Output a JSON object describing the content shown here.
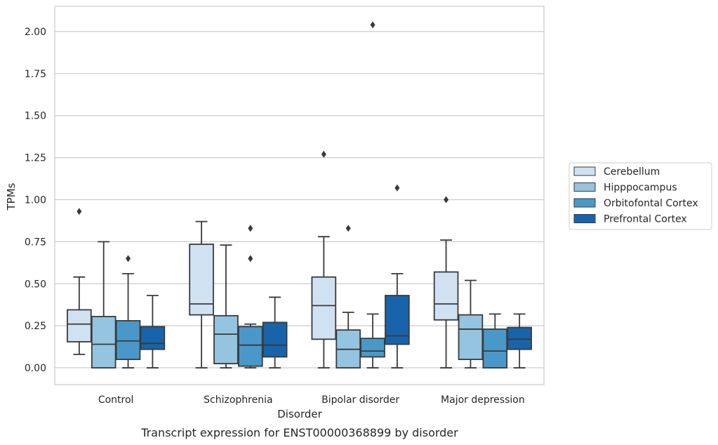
{
  "chart_data": {
    "type": "box",
    "title": "",
    "xlabel": "Disorder",
    "ylabel": "TPMs",
    "caption": "Transcript expression for ENST00000368899 by disorder",
    "ylim": [
      -0.1,
      2.15
    ],
    "yticks": [
      "0.00",
      "0.25",
      "0.50",
      "0.75",
      "1.00",
      "1.25",
      "1.50",
      "1.75",
      "2.00"
    ],
    "grid": "horizontal",
    "legend_position": "right",
    "categories": [
      "Control",
      "Schizophrenia",
      "Bipolar disorder",
      "Major depression"
    ],
    "series": [
      {
        "name": "Cerebellum",
        "color": "#d0e1f2",
        "boxes": [
          {
            "whislo": 0.08,
            "q1": 0.155,
            "med": 0.26,
            "q3": 0.345,
            "whishi": 0.54,
            "fliers": [
              0.93
            ]
          },
          {
            "whislo": 0.0,
            "q1": 0.315,
            "med": 0.38,
            "q3": 0.735,
            "whishi": 0.87,
            "fliers": []
          },
          {
            "whislo": 0.0,
            "q1": 0.17,
            "med": 0.37,
            "q3": 0.54,
            "whishi": 0.78,
            "fliers": [
              1.27
            ]
          },
          {
            "whislo": 0.0,
            "q1": 0.285,
            "med": 0.38,
            "q3": 0.57,
            "whishi": 0.76,
            "fliers": [
              1.0
            ]
          }
        ]
      },
      {
        "name": "Hipppocampus",
        "color": "#94c4df",
        "boxes": [
          {
            "whislo": 0.0,
            "q1": 0.0,
            "med": 0.14,
            "q3": 0.305,
            "whishi": 0.75,
            "fliers": []
          },
          {
            "whislo": 0.0,
            "q1": 0.025,
            "med": 0.2,
            "q3": 0.31,
            "whishi": 0.73,
            "fliers": []
          },
          {
            "whislo": 0.0,
            "q1": 0.0,
            "med": 0.11,
            "q3": 0.225,
            "whishi": 0.33,
            "fliers": [
              0.83
            ]
          },
          {
            "whislo": 0.0,
            "q1": 0.05,
            "med": 0.23,
            "q3": 0.315,
            "whishi": 0.52,
            "fliers": []
          }
        ]
      },
      {
        "name": "Orbitofontal Cortex",
        "color": "#4a98c9",
        "boxes": [
          {
            "whislo": 0.0,
            "q1": 0.05,
            "med": 0.16,
            "q3": 0.28,
            "whishi": 0.56,
            "fliers": [
              0.65
            ]
          },
          {
            "whislo": 0.0,
            "q1": 0.01,
            "med": 0.135,
            "q3": 0.245,
            "whishi": 0.26,
            "fliers": [
              0.65,
              0.83
            ]
          },
          {
            "whislo": 0.0,
            "q1": 0.065,
            "med": 0.1,
            "q3": 0.175,
            "whishi": 0.32,
            "fliers": [
              2.04
            ]
          },
          {
            "whislo": 0.0,
            "q1": 0.0,
            "med": 0.1,
            "q3": 0.23,
            "whishi": 0.32,
            "fliers": []
          }
        ]
      },
      {
        "name": "Prefrontal Cortex",
        "color": "#1764ab",
        "boxes": [
          {
            "whislo": 0.0,
            "q1": 0.11,
            "med": 0.145,
            "q3": 0.245,
            "whishi": 0.43,
            "fliers": []
          },
          {
            "whislo": 0.0,
            "q1": 0.065,
            "med": 0.135,
            "q3": 0.27,
            "whishi": 0.42,
            "fliers": []
          },
          {
            "whislo": 0.0,
            "q1": 0.14,
            "med": 0.19,
            "q3": 0.43,
            "whishi": 0.56,
            "fliers": [
              1.07
            ]
          },
          {
            "whislo": 0.0,
            "q1": 0.11,
            "med": 0.17,
            "q3": 0.24,
            "whishi": 0.32,
            "fliers": []
          }
        ]
      }
    ]
  }
}
